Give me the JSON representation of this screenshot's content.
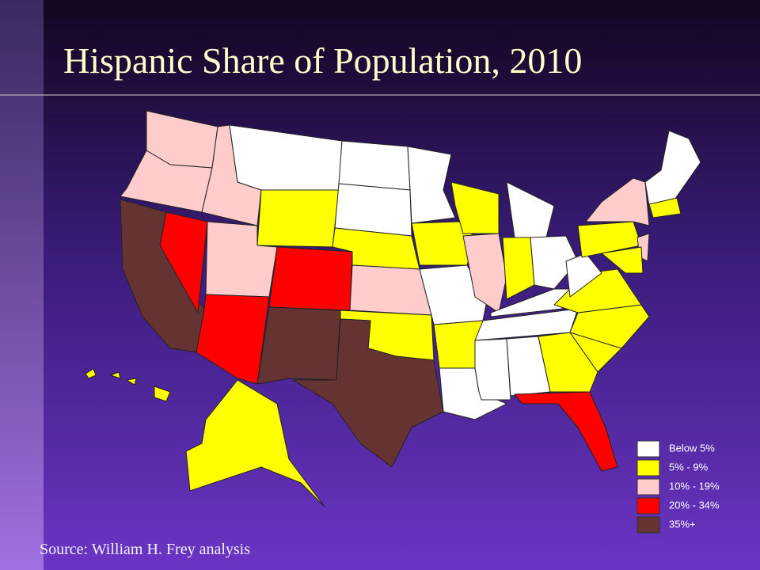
{
  "title": "Hispanic Share of Population, 2010",
  "source": "Source: William H. Frey analysis",
  "legend": [
    {
      "label": "Below 5%",
      "color": "#ffffff"
    },
    {
      "label": "5% - 9%",
      "color": "#ffff00"
    },
    {
      "label": "10% - 19%",
      "color": "#ffcccc"
    },
    {
      "label": "20% - 34%",
      "color": "#ff0000"
    },
    {
      "label": "35%+",
      "color": "#663333"
    }
  ]
}
